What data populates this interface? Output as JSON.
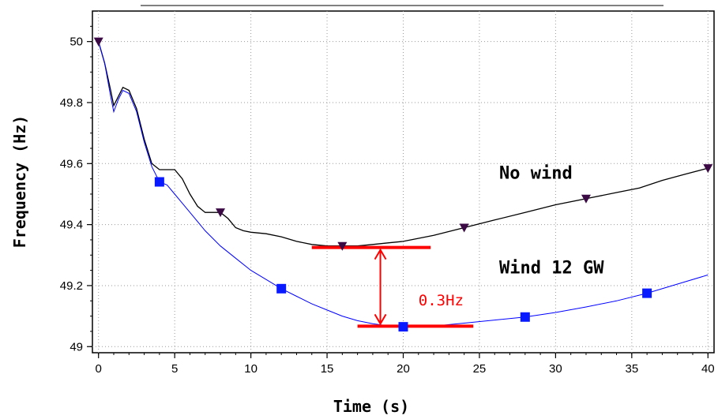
{
  "chart_data": {
    "type": "line",
    "title": "",
    "xlabel": "Time (s)",
    "ylabel": "Frequency (Hz)",
    "xlim": [
      -0.4,
      40.4
    ],
    "ylim": [
      48.98,
      50.1
    ],
    "xticks": [
      0,
      5,
      10,
      15,
      20,
      25,
      30,
      35,
      40
    ],
    "yticks": [
      49,
      49.2,
      49.4,
      49.6,
      49.8,
      50
    ],
    "ytick_labels": [
      "49",
      "49.2",
      "49.4",
      "49.6",
      "49.8",
      "50"
    ],
    "grid": true,
    "series": [
      {
        "name": "No wind",
        "color": "#000000",
        "marker": "triangle-down",
        "marker_color": "#3b0a45",
        "x": [
          0,
          0.4,
          0.8,
          1.0,
          1.3,
          1.6,
          2.0,
          2.5,
          3.0,
          3.5,
          4.0,
          4.5,
          5.0,
          5.5,
          6.0,
          6.5,
          7.0,
          7.5,
          8.0,
          8.5,
          9.0,
          9.5,
          10.0,
          11.0,
          12.0,
          13.0,
          14.0,
          15.0,
          16.0,
          17.0,
          18.0,
          19.0,
          20.0,
          22.0,
          24.0,
          26.0,
          28.0,
          30.0,
          32.0,
          34.0,
          35.5,
          37.0,
          38.5,
          40.0
        ],
        "y": [
          50.0,
          49.93,
          49.84,
          49.79,
          49.82,
          49.85,
          49.84,
          49.78,
          49.68,
          49.6,
          49.58,
          49.58,
          49.58,
          49.55,
          49.5,
          49.46,
          49.44,
          49.44,
          49.44,
          49.42,
          49.39,
          49.38,
          49.375,
          49.37,
          49.36,
          49.345,
          49.335,
          49.33,
          49.33,
          49.33,
          49.335,
          49.34,
          49.345,
          49.365,
          49.39,
          49.415,
          49.44,
          49.465,
          49.485,
          49.505,
          49.52,
          49.545,
          49.565,
          49.585
        ],
        "markers_x": [
          0,
          8,
          16,
          24,
          32,
          40
        ],
        "markers_y": [
          50.0,
          49.44,
          49.33,
          49.39,
          49.485,
          49.585
        ]
      },
      {
        "name": "Wind 12 GW",
        "color": "#0000ff",
        "marker": "square",
        "marker_color": "#0a1aff",
        "x": [
          0,
          0.4,
          0.8,
          1.0,
          1.3,
          1.6,
          2.0,
          2.5,
          3.0,
          3.5,
          4.0,
          4.5,
          5.0,
          6.0,
          7.0,
          8.0,
          9.0,
          10.0,
          11.0,
          12.0,
          13.0,
          14.0,
          15.0,
          16.0,
          17.0,
          18.0,
          19.0,
          20.0,
          21.0,
          22.0,
          23.0,
          24.0,
          26.0,
          28.0,
          30.0,
          32.0,
          34.0,
          36.0,
          38.0,
          40.0
        ],
        "y": [
          50.0,
          49.93,
          49.82,
          49.77,
          49.81,
          49.84,
          49.83,
          49.77,
          49.67,
          49.59,
          49.54,
          49.53,
          49.5,
          49.44,
          49.38,
          49.33,
          49.29,
          49.25,
          49.22,
          49.19,
          49.165,
          49.14,
          49.12,
          49.1,
          49.085,
          49.075,
          49.068,
          49.065,
          49.065,
          49.067,
          49.072,
          49.077,
          49.087,
          49.097,
          49.112,
          49.13,
          49.15,
          49.175,
          49.205,
          49.235
        ],
        "markers_x": [
          4,
          12,
          20,
          28,
          36
        ],
        "markers_y": [
          49.54,
          49.19,
          49.065,
          49.097,
          49.175
        ]
      }
    ],
    "annotations": [
      {
        "text": "No wind",
        "x": 26.3,
        "y": 49.55
      },
      {
        "text": "Wind 12 GW",
        "x": 26.3,
        "y": 49.24
      },
      {
        "text": "0.3Hz",
        "x": 21.0,
        "y": 49.135
      }
    ],
    "difference_marker": {
      "top_line": {
        "x1": 14.0,
        "x2": 21.8,
        "y": 49.325
      },
      "bottom_line": {
        "x1": 17.0,
        "x2": 24.6,
        "y": 49.067
      },
      "arrow_x": 18.5,
      "color": "#ff0000"
    }
  }
}
